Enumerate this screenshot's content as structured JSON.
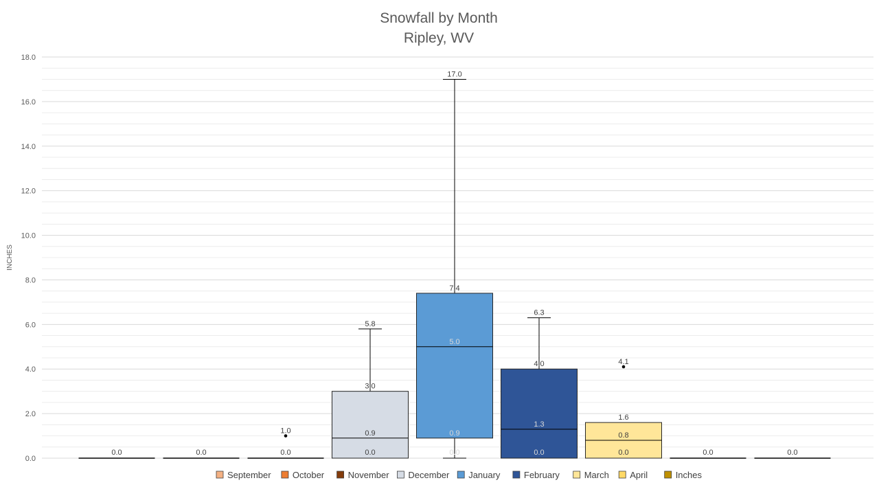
{
  "chart_data": {
    "type": "box",
    "title": "Snowfall by Month",
    "subtitle": "Ripley, WV",
    "ylabel": "INCHES",
    "ylim": [
      0,
      18
    ],
    "yticks": [
      0,
      2,
      4,
      6,
      8,
      10,
      12,
      14,
      16,
      18
    ],
    "ytick_labels": [
      "0.0",
      "2.0",
      "4.0",
      "6.0",
      "8.0",
      "10.0",
      "12.0",
      "14.0",
      "16.0",
      "18.0"
    ],
    "grid": true,
    "legend_position": "bottom",
    "legend": [
      "September",
      "October",
      "November",
      "December",
      "January",
      "February",
      "March",
      "April",
      "Inches"
    ],
    "legend_colors": [
      "#f4b183",
      "#ed7d31",
      "#843c0c",
      "#d6dce5",
      "#5b9bd5",
      "#2f5597",
      "#ffe699",
      "#ffd966",
      "#bf9000"
    ],
    "series": [
      {
        "name": "September",
        "color": "#f4b183",
        "min": 0.0,
        "q1": 0.0,
        "median": 0.0,
        "q3": 0.0,
        "max": 0.0,
        "outliers": [],
        "labels": [
          "0.0"
        ]
      },
      {
        "name": "October",
        "color": "#ed7d31",
        "min": 0.0,
        "q1": 0.0,
        "median": 0.0,
        "q3": 0.0,
        "max": 0.0,
        "outliers": [],
        "labels": [
          "0.0"
        ]
      },
      {
        "name": "November",
        "color": "#843c0c",
        "min": 0.0,
        "q1": 0.0,
        "median": 0.0,
        "q3": 0.0,
        "max": 0.0,
        "outliers": [
          1.0
        ],
        "labels": [
          "0.0",
          "1.0"
        ]
      },
      {
        "name": "December",
        "color": "#d6dce5",
        "min": 0.0,
        "q1": 0.0,
        "median": 0.9,
        "q3": 3.0,
        "max": 5.8,
        "outliers": [],
        "labels": [
          "0.0",
          "0.9",
          "3.0",
          "5.8"
        ]
      },
      {
        "name": "January",
        "color": "#5b9bd5",
        "min": 0.0,
        "q1": 0.9,
        "median": 5.0,
        "q3": 7.4,
        "max": 17.0,
        "outliers": [],
        "labels": [
          "0.0",
          "0.9",
          "5.0",
          "7.4",
          "17.0"
        ]
      },
      {
        "name": "February",
        "color": "#2f5597",
        "min": 0.0,
        "q1": 0.0,
        "median": 1.3,
        "q3": 4.0,
        "max": 6.3,
        "outliers": [],
        "labels": [
          "0.0",
          "1.3",
          "4.0",
          "6.3"
        ]
      },
      {
        "name": "March",
        "color": "#ffe699",
        "min": 0.0,
        "q1": 0.0,
        "median": 0.8,
        "q3": 1.6,
        "max": 1.6,
        "outliers": [
          4.1
        ],
        "labels": [
          "0.0",
          "0.8",
          "1.6",
          "4.1"
        ]
      },
      {
        "name": "April",
        "color": "#ffd966",
        "min": 0.0,
        "q1": 0.0,
        "median": 0.0,
        "q3": 0.0,
        "max": 0.0,
        "outliers": [],
        "labels": [
          "0.0"
        ]
      },
      {
        "name": "Inches",
        "color": "#bf9000",
        "min": 0.0,
        "q1": 0.0,
        "median": 0.0,
        "q3": 0.0,
        "max": 0.0,
        "outliers": [],
        "labels": [
          "0.0"
        ]
      }
    ]
  }
}
